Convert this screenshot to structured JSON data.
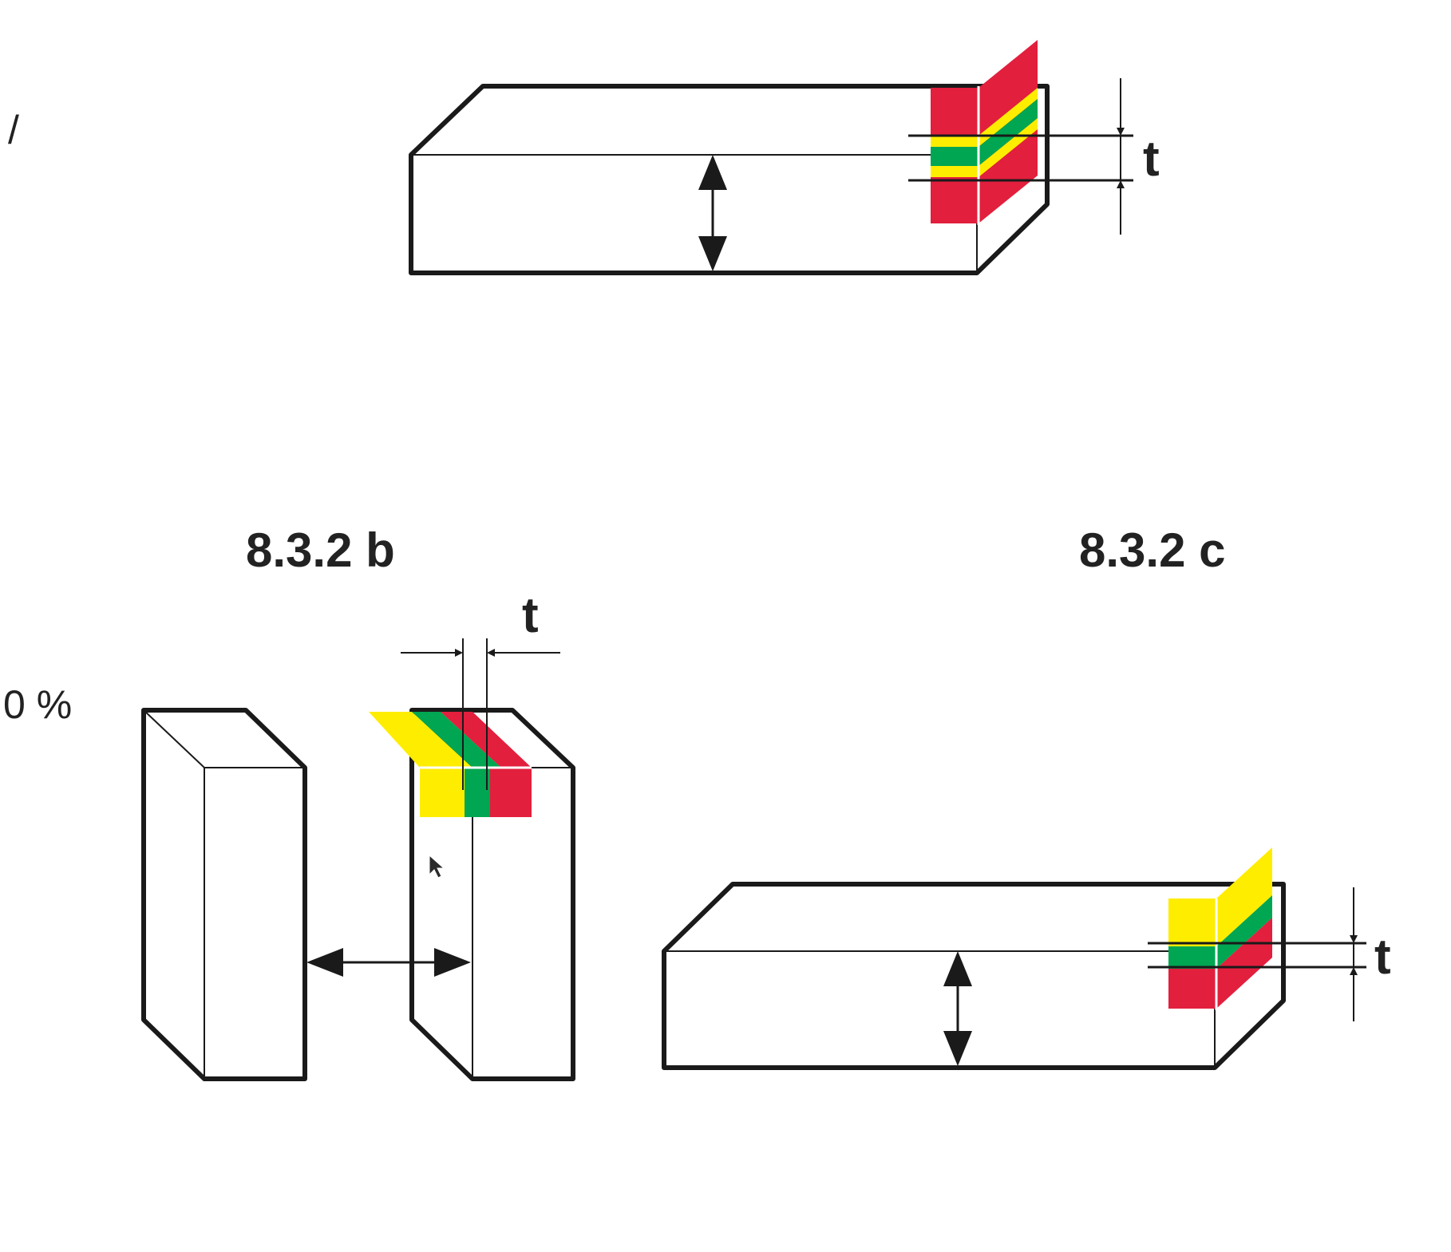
{
  "labels": {
    "left_top_fragment": "/",
    "left_mid_fragment": "0 %",
    "fig_b": "8.3.2 b",
    "fig_c": "8.3.2 c",
    "t_top": "t",
    "t_b": "t",
    "t_c": "t"
  },
  "colors": {
    "red": "#e21f3d",
    "yellow": "#ffed00",
    "green": "#00a651",
    "line": "#1a1a1a"
  }
}
